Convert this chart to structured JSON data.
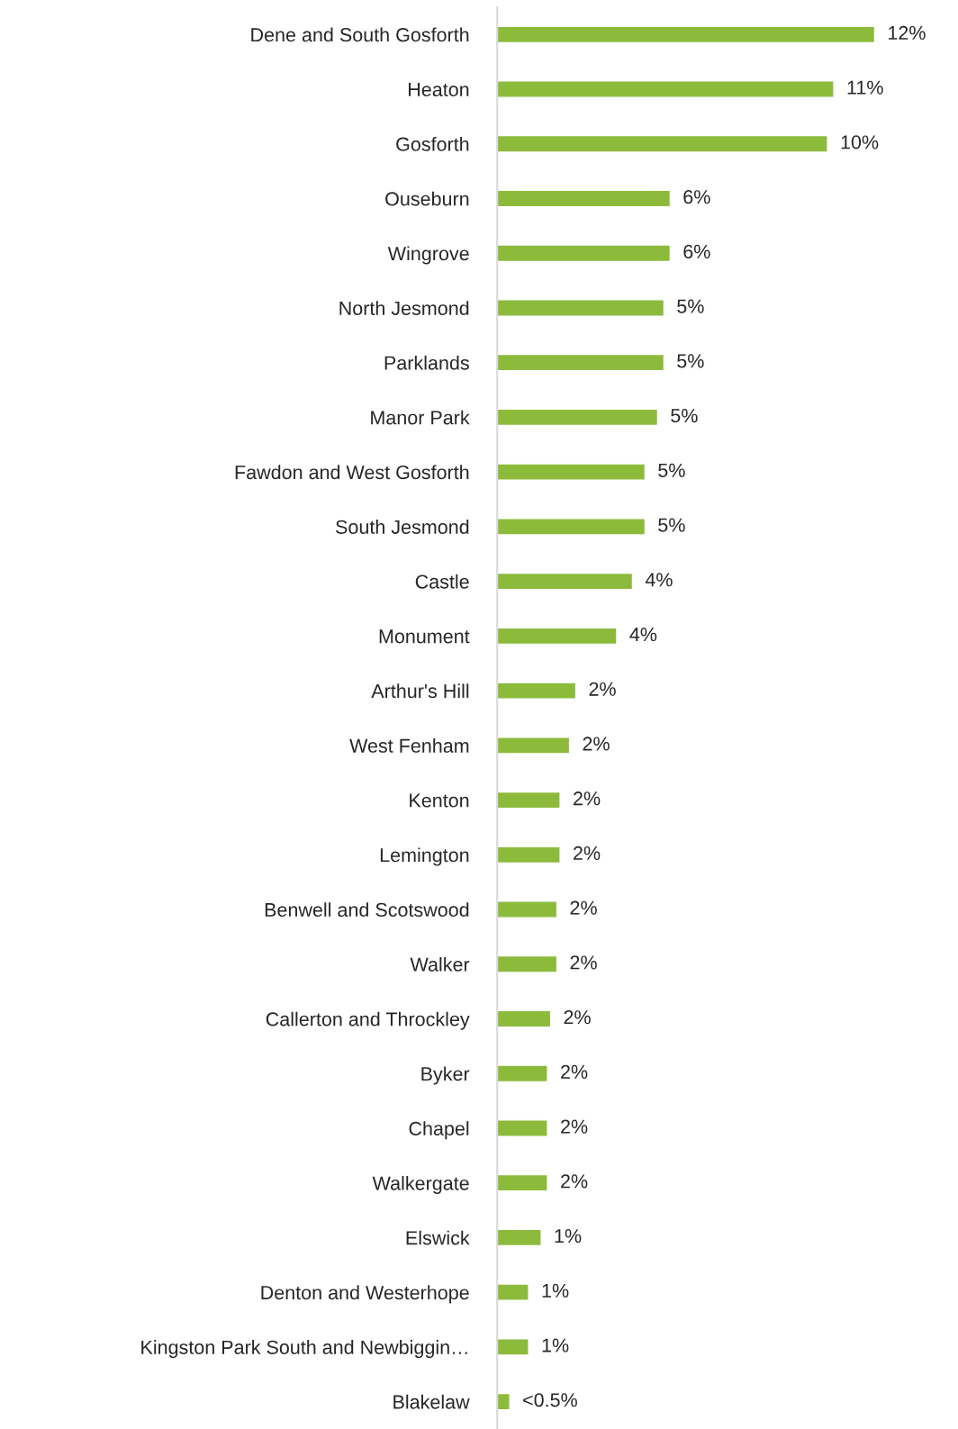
{
  "chart_data": {
    "type": "bar",
    "orientation": "horizontal",
    "color": "#8cbb3c",
    "categories": [
      "Dene and South Gosforth",
      "Heaton",
      "Gosforth",
      "Ouseburn",
      "Wingrove",
      "North Jesmond",
      "Parklands",
      "Manor Park",
      "Fawdon and West Gosforth",
      "South Jesmond",
      "Castle",
      "Monument",
      "Arthur's Hill",
      "West Fenham",
      "Kenton",
      "Lemington",
      "Benwell and Scotswood",
      "Walker",
      "Callerton and Throckley",
      "Byker",
      "Chapel",
      "Walkergate",
      "Elswick",
      "Denton and Westerhope",
      "Kingston Park South and Newbiggin…",
      "Blakelaw"
    ],
    "values": [
      12.0,
      10.7,
      10.5,
      5.5,
      5.5,
      5.3,
      5.3,
      5.1,
      4.7,
      4.7,
      4.3,
      3.8,
      2.5,
      2.3,
      2.0,
      2.0,
      1.9,
      1.9,
      1.7,
      1.6,
      1.6,
      1.6,
      1.4,
      1.0,
      1.0,
      0.4
    ],
    "value_labels": [
      "12%",
      "11%",
      "10%",
      "6%",
      "6%",
      "5%",
      "5%",
      "5%",
      "5%",
      "5%",
      "4%",
      "4%",
      "2%",
      "2%",
      "2%",
      "2%",
      "2%",
      "2%",
      "2%",
      "2%",
      "2%",
      "2%",
      "1%",
      "1%",
      "1%",
      "<0.5%"
    ],
    "grid": false,
    "legend": false
  }
}
